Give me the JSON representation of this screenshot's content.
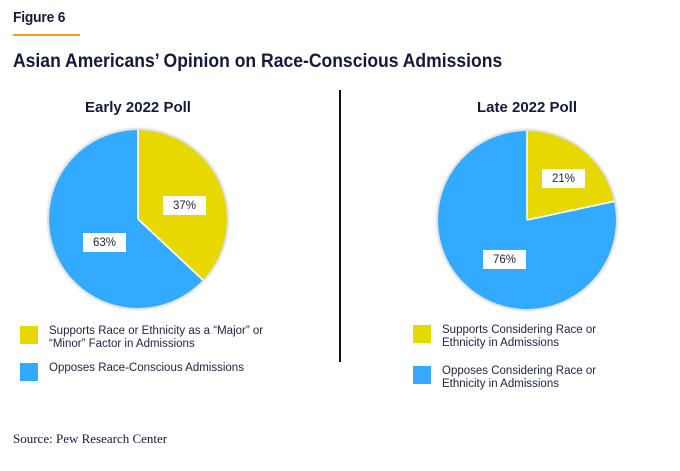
{
  "figure_label": "Figure 6",
  "title": "Asian Americans’ Opinion on Race-Conscious Admissions",
  "source": "Source: Pew Research Center",
  "colors": {
    "support": "#e6d800",
    "oppose": "#33aaff",
    "accent_rule": "#f0a02a",
    "text": "#141a3a"
  },
  "chart_data": [
    {
      "type": "pie",
      "title": "Early 2022 Poll",
      "slices": [
        {
          "label": "Supports Race or Ethnicity as a “Major” or “Minor” Factor in Admissions",
          "value": 37,
          "display": "37%",
          "color": "#e6d800"
        },
        {
          "label": "Opposes Race-Conscious Admissions",
          "value": 63,
          "display": "63%",
          "color": "#33aaff"
        }
      ],
      "start_angle": "12 o'clock",
      "direction": "clockwise",
      "legend": [
        {
          "label": "Supports Race or Ethnicity as a “Major” or “Minor” Factor in Admissions",
          "color": "#e6d800"
        },
        {
          "label": "Opposes Race-Conscious Admissions",
          "color": "#33aaff"
        }
      ],
      "legend_position": "bottom"
    },
    {
      "type": "pie",
      "title": "Late 2022 Poll",
      "slices": [
        {
          "label": "Supports Considering Race or Ethnicity in Admissions",
          "value": 21,
          "display": "21%",
          "color": "#e6d800"
        },
        {
          "label": "Opposes Considering Race or Ethnicity in Admissions",
          "value": 76,
          "display": "76%",
          "color": "#33aaff"
        }
      ],
      "start_angle": "12 o'clock",
      "direction": "clockwise",
      "legend": [
        {
          "label": "Supports Considering Race or Ethnicity in Admissions",
          "color": "#e6d800"
        },
        {
          "label": "Opposes Considering Race or Ethnicity in Admissions",
          "color": "#33aaff"
        }
      ],
      "legend_position": "bottom"
    }
  ]
}
